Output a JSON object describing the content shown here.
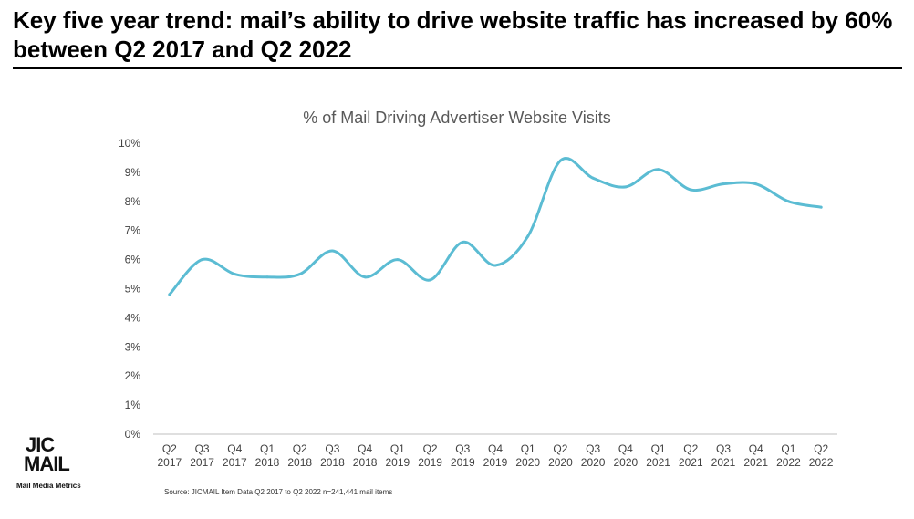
{
  "headline": "Key five year trend: mail’s ability to drive website traffic has increased by 60% between Q2 2017 and Q2 2022",
  "logo": {
    "top": "JIC",
    "bottom": "MAIL",
    "tagline": "Mail Media Metrics"
  },
  "source": "Source: JICMAIL Item Data Q2 2017 to Q2 2022 n=241,441 mail items",
  "colors": {
    "line": "#5BBCD3",
    "axis": "#BFBFBF",
    "text": "#404040"
  },
  "chart_data": {
    "type": "line",
    "title": "% of Mail Driving Advertiser Website Visits",
    "categories": [
      [
        "Q2",
        "2017"
      ],
      [
        "Q3",
        "2017"
      ],
      [
        "Q4",
        "2017"
      ],
      [
        "Q1",
        "2018"
      ],
      [
        "Q2",
        "2018"
      ],
      [
        "Q3",
        "2018"
      ],
      [
        "Q4",
        "2018"
      ],
      [
        "Q1",
        "2019"
      ],
      [
        "Q2",
        "2019"
      ],
      [
        "Q3",
        "2019"
      ],
      [
        "Q4",
        "2019"
      ],
      [
        "Q1",
        "2020"
      ],
      [
        "Q2",
        "2020"
      ],
      [
        "Q3",
        "2020"
      ],
      [
        "Q4",
        "2020"
      ],
      [
        "Q1",
        "2021"
      ],
      [
        "Q2",
        "2021"
      ],
      [
        "Q3",
        "2021"
      ],
      [
        "Q4",
        "2021"
      ],
      [
        "Q1",
        "2022"
      ],
      [
        "Q2",
        "2022"
      ]
    ],
    "series": [
      {
        "values": [
          4.8,
          6.0,
          5.5,
          5.4,
          5.5,
          6.3,
          5.4,
          6.0,
          5.3,
          6.6,
          5.8,
          6.8,
          9.4,
          8.8,
          8.5,
          9.1,
          8.4,
          8.6,
          8.6,
          8.0,
          7.8
        ]
      }
    ],
    "yticks": [
      "0%",
      "1%",
      "2%",
      "3%",
      "4%",
      "5%",
      "6%",
      "7%",
      "8%",
      "9%",
      "10%"
    ],
    "ylim": [
      0,
      10
    ],
    "grid": false,
    "legend": "none"
  }
}
